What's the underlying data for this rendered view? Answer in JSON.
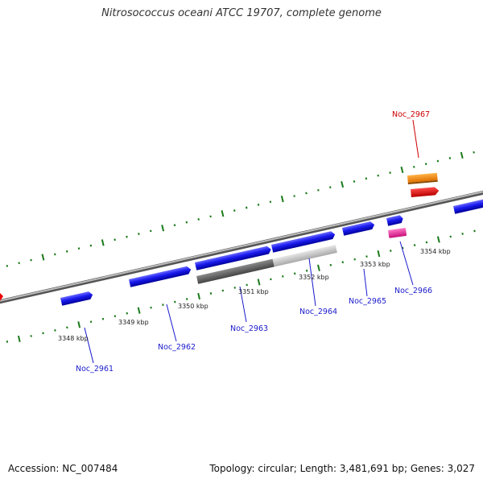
{
  "title": "Nitrosococcus oceani ATCC 19707, complete genome",
  "footer": {
    "accession": "Accession: NC_007484",
    "summary": "Topology: circular; Length: 3,481,691 bp; Genes: 3,027"
  },
  "colors": {
    "gene_blue": "#1a1aee",
    "highlight_red": "#cc0000",
    "orange": "#ff8c00",
    "red": "#ee0000",
    "magenta": "#ee1493",
    "tick_green": "#1a7a1a",
    "backbone": "#8a8a8a"
  },
  "ticks": [
    {
      "label": "3348 kbp"
    },
    {
      "label": "3349 kbp"
    },
    {
      "label": "3350 kbp"
    },
    {
      "label": "3351 kbp"
    },
    {
      "label": "3352 kbp"
    },
    {
      "label": "3353 kbp"
    },
    {
      "label": "3354 kbp"
    }
  ],
  "gene_labels": [
    {
      "name": "Noc_2961",
      "color": "#1a1acc"
    },
    {
      "name": "Noc_2962",
      "color": "#1a1acc"
    },
    {
      "name": "Noc_2963",
      "color": "#1a1acc"
    },
    {
      "name": "Noc_2964",
      "color": "#1a1acc"
    },
    {
      "name": "Noc_2965",
      "color": "#1a1acc"
    },
    {
      "name": "Noc_2966",
      "color": "#1a1acc"
    },
    {
      "name": "Noc_2967",
      "color": "#cc0000"
    }
  ]
}
